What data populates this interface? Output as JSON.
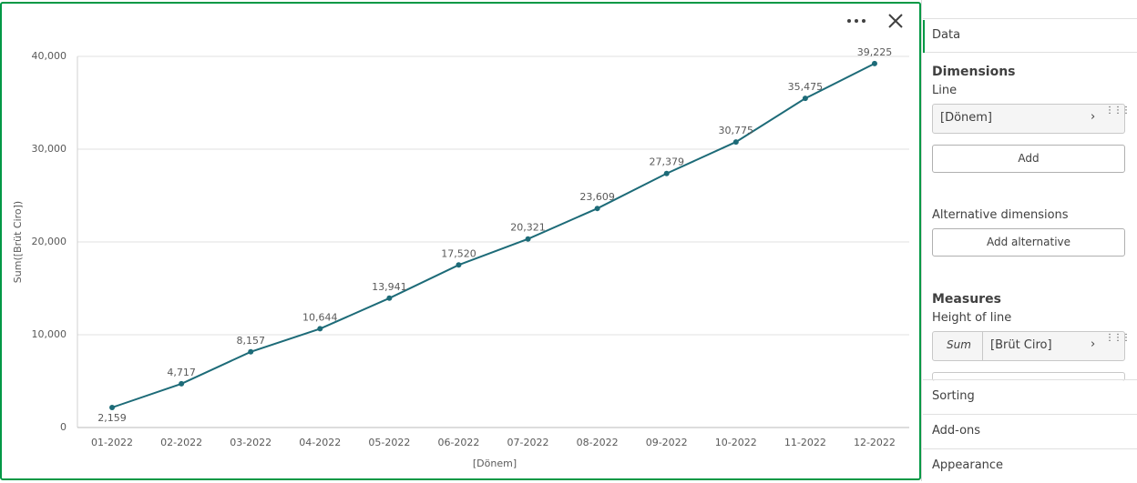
{
  "chart_data": {
    "type": "line",
    "x_label": "[Dönem]",
    "y_label": "Sum([Brüt Ciro])",
    "categories": [
      "01-2022",
      "02-2022",
      "03-2022",
      "04-2022",
      "05-2022",
      "06-2022",
      "07-2022",
      "08-2022",
      "09-2022",
      "10-2022",
      "11-2022",
      "12-2022"
    ],
    "values": [
      2159,
      4717,
      8157,
      10644,
      13941,
      17520,
      20321,
      23609,
      27379,
      30775,
      35475,
      39225
    ],
    "value_labels": [
      "2,159",
      "4,717",
      "8,157",
      "10,644",
      "13,941",
      "17,520",
      "20,321",
      "23,609",
      "27,379",
      "30,775",
      "35,475",
      "39,225"
    ],
    "color": "#1d6b78",
    "ylim": [
      0,
      40000
    ],
    "yticks": [
      0,
      {
        "value": 10000,
        "label": "10,000"
      },
      {
        "value": 20000,
        "label": "20,000"
      },
      {
        "value": 30000,
        "label": "30,000"
      },
      {
        "value": 40000,
        "label": "40,000"
      }
    ],
    "grid": true
  },
  "panel": {
    "tab": "Data",
    "dimensions": {
      "title": "Dimensions",
      "subtitle": "Line",
      "field": "[Dönem]",
      "add": "Add",
      "alternative_title": "Alternative dimensions",
      "add_alternative": "Add alternative"
    },
    "measures": {
      "title": "Measures",
      "subtitle": "Height of line",
      "aggregation": "Sum",
      "field": "[Brüt Ciro]"
    },
    "sections": [
      "Sorting",
      "Add-ons",
      "Appearance"
    ]
  }
}
